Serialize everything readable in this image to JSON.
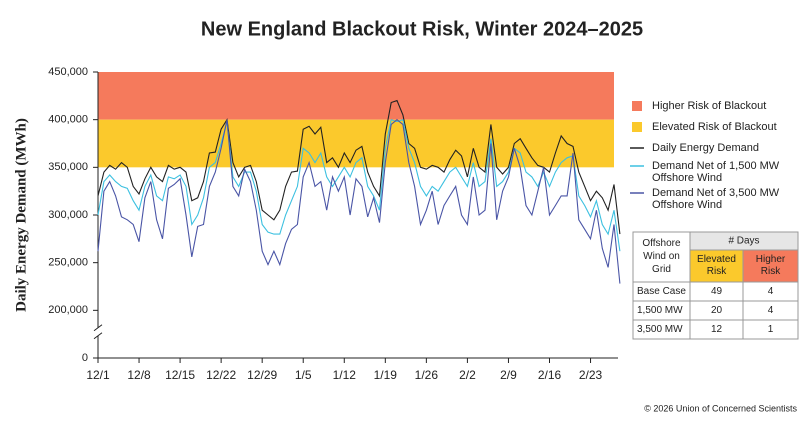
{
  "chart_data": {
    "type": "line",
    "title": "New England Blackout Risk, Winter 2024–2025",
    "y_label": "Daily Energy Demand (MWh)",
    "categories": [
      "12/1",
      null,
      null,
      null,
      null,
      null,
      null,
      "12/8",
      null,
      null,
      null,
      null,
      null,
      null,
      "12/15",
      null,
      null,
      null,
      null,
      null,
      null,
      "12/22",
      null,
      null,
      null,
      null,
      null,
      null,
      "12/29",
      null,
      null,
      null,
      null,
      null,
      null,
      "1/5",
      null,
      null,
      null,
      null,
      null,
      null,
      "1/12",
      null,
      null,
      null,
      null,
      null,
      null,
      "1/19",
      null,
      null,
      null,
      null,
      null,
      null,
      "1/26",
      null,
      null,
      null,
      null,
      null,
      null,
      "2/2",
      null,
      null,
      null,
      null,
      null,
      null,
      "2/9",
      null,
      null,
      null,
      null,
      null,
      null,
      "2/16",
      null,
      null,
      null,
      null,
      null,
      null,
      "2/23",
      null,
      null,
      null,
      null,
      null
    ],
    "series": [
      {
        "name": "Daily Energy Demand",
        "color": "#222222",
        "values": [
          320000,
          345000,
          352000,
          348000,
          355000,
          350000,
          330000,
          322000,
          338000,
          350000,
          340000,
          335000,
          352000,
          348000,
          350000,
          345000,
          315000,
          318000,
          335000,
          365000,
          366000,
          390000,
          400000,
          355000,
          340000,
          350000,
          352000,
          335000,
          305000,
          300000,
          295000,
          305000,
          330000,
          345000,
          346000,
          390000,
          393000,
          385000,
          392000,
          355000,
          360000,
          350000,
          365000,
          355000,
          368000,
          372000,
          345000,
          330000,
          320000,
          385000,
          418000,
          420000,
          405000,
          375000,
          370000,
          350000,
          348000,
          352000,
          350000,
          345000,
          358000,
          368000,
          362000,
          340000,
          370000,
          350000,
          345000,
          395000,
          350000,
          343000,
          350000,
          375000,
          380000,
          370000,
          360000,
          352000,
          350000,
          345000,
          365000,
          383000,
          375000,
          372000,
          345000,
          330000,
          315000,
          325000,
          318000,
          305000,
          332000,
          280000
        ]
      },
      {
        "name": "Demand Net of 1,500 MW Offshore Wind",
        "color": "#3cc0e0",
        "values": [
          300000,
          335000,
          342000,
          335000,
          330000,
          328000,
          315000,
          305000,
          330000,
          342000,
          320000,
          315000,
          340000,
          338000,
          342000,
          330000,
          290000,
          300000,
          318000,
          350000,
          355000,
          375000,
          398000,
          340000,
          330000,
          345000,
          345000,
          325000,
          290000,
          282000,
          280000,
          280000,
          300000,
          315000,
          330000,
          370000,
          365000,
          355000,
          365000,
          340000,
          330000,
          340000,
          350000,
          340000,
          355000,
          360000,
          330000,
          320000,
          305000,
          370000,
          400000,
          398000,
          400000,
          370000,
          355000,
          330000,
          320000,
          330000,
          325000,
          335000,
          345000,
          350000,
          340000,
          330000,
          355000,
          330000,
          335000,
          380000,
          330000,
          335000,
          345000,
          370000,
          365000,
          345000,
          340000,
          330000,
          345000,
          330000,
          345000,
          355000,
          360000,
          362000,
          320000,
          310000,
          298000,
          315000,
          290000,
          280000,
          305000,
          262000
        ]
      },
      {
        "name": "Demand Net of 3,500 MW Offshore Wind",
        "color": "#4a55a6",
        "values": [
          262000,
          325000,
          335000,
          320000,
          298000,
          295000,
          290000,
          272000,
          318000,
          335000,
          295000,
          275000,
          328000,
          332000,
          338000,
          300000,
          256000,
          288000,
          290000,
          330000,
          345000,
          370000,
          400000,
          330000,
          320000,
          348000,
          335000,
          305000,
          262000,
          248000,
          262000,
          248000,
          270000,
          285000,
          290000,
          340000,
          355000,
          330000,
          335000,
          305000,
          340000,
          325000,
          340000,
          300000,
          338000,
          330000,
          298000,
          318000,
          292000,
          355000,
          395000,
          400000,
          395000,
          355000,
          330000,
          290000,
          305000,
          325000,
          290000,
          310000,
          320000,
          330000,
          300000,
          290000,
          340000,
          300000,
          305000,
          375000,
          295000,
          325000,
          340000,
          370000,
          350000,
          310000,
          300000,
          325000,
          350000,
          300000,
          310000,
          320000,
          320000,
          365000,
          295000,
          285000,
          275000,
          305000,
          265000,
          245000,
          290000,
          228000
        ]
      }
    ],
    "bands": [
      {
        "name": "Higher Risk of Blackout",
        "from": 400000,
        "to": 450000,
        "color": "#f57a5c"
      },
      {
        "name": "Elevated Risk of Blackout",
        "from": 350000,
        "to": 400000,
        "color": "#fbc92c"
      }
    ],
    "ylim": [
      0,
      450000
    ],
    "yticks": [
      0,
      {
        "value": 200000,
        "label": "200,000"
      },
      {
        "value": 250000,
        "label": "250,000"
      },
      {
        "value": 300000,
        "label": "300,000"
      },
      {
        "value": 350000,
        "label": "350,000"
      },
      {
        "value": 400000,
        "label": "400,000"
      },
      {
        "value": 450000,
        "label": "450,000"
      }
    ],
    "y_break": true,
    "grid": false
  },
  "table": {
    "corner": "Offshore Wind on Grid",
    "group": "# Days",
    "columns": [
      "Elevated Risk",
      "Higher Risk"
    ],
    "rows": [
      [
        "Base Case",
        "49",
        "4"
      ],
      [
        "1,500 MW",
        "20",
        "4"
      ],
      [
        "3,500 MW",
        "12",
        "1"
      ]
    ]
  },
  "footer": "© 2026 Union of Concerned Scientists"
}
